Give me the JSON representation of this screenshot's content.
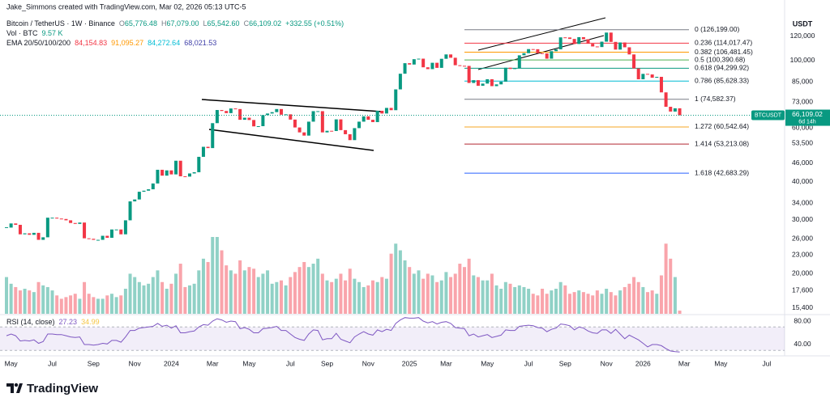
{
  "header": {
    "credit": "Jake_Simmons created with TradingView.com, Mar 02, 2026 05:13 UTC-5"
  },
  "chart_data": {
    "type": "candlestick",
    "legend": {
      "symbol": "Bitcoin / TetherUS · 1W · Binance",
      "ohlc": [
        {
          "k": "O",
          "v": "65,776.48"
        },
        {
          "k": "H",
          "v": "67,079.00"
        },
        {
          "k": "L",
          "v": "65,542.60"
        },
        {
          "k": "C",
          "v": "66,109.02"
        }
      ],
      "change": "+332.55 (+0.51%)"
    },
    "up_color": "#089981",
    "down_color": "#f23645",
    "categories": [
      null,
      "May",
      null,
      null,
      null,
      null,
      null,
      null,
      null,
      null,
      "Jul",
      null,
      null,
      null,
      null,
      null,
      null,
      null,
      null,
      "Sep",
      null,
      null,
      null,
      null,
      null,
      null,
      null,
      null,
      "Nov",
      null,
      null,
      null,
      null,
      null,
      null,
      null,
      "2024",
      null,
      null,
      null,
      null,
      null,
      null,
      null,
      null,
      "Mar",
      null,
      null,
      null,
      null,
      null,
      null,
      null,
      "May",
      null,
      null,
      null,
      null,
      null,
      null,
      null,
      null,
      "Jul",
      null,
      null,
      null,
      null,
      null,
      null,
      null,
      "Sep",
      null,
      null,
      null,
      null,
      null,
      null,
      null,
      null,
      "Nov",
      null,
      null,
      null,
      null,
      null,
      null,
      null,
      null,
      "2025",
      null,
      null,
      null,
      null,
      null,
      null,
      null,
      "Mar",
      null,
      null,
      null,
      null,
      null,
      null,
      null,
      null,
      "May",
      null,
      null,
      null,
      null,
      null,
      null,
      null,
      null,
      "Jul",
      null,
      null,
      null,
      null,
      null,
      null,
      null,
      "Sep",
      null,
      null,
      null,
      null,
      null,
      null,
      null,
      null,
      "Nov",
      null,
      null,
      null,
      null,
      null,
      null,
      null,
      "2026",
      null,
      null,
      null,
      null,
      null,
      null,
      null,
      null,
      "Mar",
      null,
      null,
      null,
      null,
      null,
      null,
      null,
      "May",
      null,
      null,
      null,
      null,
      null,
      null,
      null,
      null,
      null,
      "Jul",
      null
    ],
    "values": [
      28300,
      29200,
      28900,
      26900,
      27100,
      26800,
      27200,
      25800,
      26300,
      30500,
      30500,
      30300,
      30200,
      29900,
      29300,
      29100,
      29400,
      26100,
      26000,
      25800,
      25800,
      26600,
      26200,
      27900,
      27900,
      26900,
      29900,
      34500,
      35000,
      37100,
      37400,
      37800,
      39500,
      43800,
      41900,
      43600,
      42300,
      46900,
      41700,
      41600,
      42600,
      43000,
      48300,
      52100,
      51600,
      62300,
      68800,
      68300,
      67200,
      69600,
      69300,
      63900,
      64900,
      63800,
      60800,
      60900,
      66200,
      67000,
      67700,
      69300,
      66400,
      66600,
      64000,
      60300,
      58100,
      56700,
      63000,
      68200,
      68200,
      58100,
      58800,
      58700,
      64100,
      59100,
      57300,
      54800,
      60000,
      63000,
      65600,
      63900,
      62800,
      68400,
      67000,
      69900,
      68700,
      80400,
      90500,
      98000,
      97000,
      101000,
      101400,
      95000,
      93700,
      98300,
      94600,
      101300,
      104700,
      102100,
      96500,
      96100,
      96000,
      84400,
      86200,
      82600,
      84000,
      86800,
      82400,
      83500,
      85200,
      94700,
      93800,
      94300,
      104000,
      105700,
      109000,
      108900,
      105700,
      105500,
      101400,
      107300,
      108800,
      119100,
      119000,
      117700,
      113300,
      119300,
      117400,
      113500,
      111200,
      110700,
      115300,
      123500,
      115100,
      108600,
      114600,
      110500,
      104700,
      94200,
      86800,
      90400,
      90000,
      87800,
      88400,
      78600,
      70500,
      68000,
      69700,
      66109.02,
      null,
      null,
      null,
      null,
      null,
      null,
      null,
      null,
      null,
      null,
      null,
      null,
      null,
      null,
      null,
      null,
      null,
      null,
      null,
      null
    ],
    "volume": {
      "label": "Vol · BTC",
      "last": "9.57 K",
      "values": [
        110,
        90,
        80,
        70,
        75,
        70,
        65,
        95,
        85,
        80,
        70,
        55,
        45,
        50,
        55,
        60,
        45,
        95,
        60,
        50,
        45,
        45,
        55,
        60,
        50,
        55,
        75,
        120,
        110,
        95,
        85,
        90,
        110,
        130,
        95,
        75,
        90,
        120,
        150,
        80,
        85,
        90,
        130,
        165,
        155,
        230,
        230,
        190,
        145,
        130,
        120,
        160,
        130,
        140,
        135,
        110,
        120,
        130,
        90,
        95,
        100,
        85,
        110,
        125,
        140,
        155,
        140,
        150,
        165,
        120,
        100,
        95,
        105,
        120,
        100,
        135,
        105,
        95,
        80,
        85,
        100,
        95,
        110,
        105,
        180,
        210,
        190,
        160,
        140,
        120,
        130,
        105,
        120,
        115,
        95,
        100,
        125,
        110,
        120,
        150,
        140,
        165,
        115,
        110,
        100,
        100,
        120,
        85,
        75,
        95,
        90,
        80,
        85,
        80,
        75,
        60,
        55,
        75,
        60,
        70,
        75,
        95,
        85,
        60,
        65,
        70,
        65,
        60,
        55,
        70,
        60,
        75,
        65,
        55,
        70,
        80,
        90,
        110,
        95,
        80,
        65,
        70,
        60,
        115,
        210,
        165,
        110,
        9.57,
        null,
        null,
        null,
        null,
        null,
        null,
        null,
        null,
        null,
        null,
        null,
        null,
        null,
        null,
        null,
        null,
        null,
        null,
        null,
        null
      ]
    },
    "ema": {
      "label": "EMA 20/50/100/200",
      "values": [
        {
          "text": "84,154.83",
          "color": "#f23645"
        },
        {
          "text": "91,095.27",
          "color": "#ff9800"
        },
        {
          "text": "84,272.64",
          "color": "#00bcd4"
        },
        {
          "text": "68,021.53",
          "color": "#3f3fa8"
        }
      ]
    },
    "log_scale": true,
    "grid": false,
    "axis_title": "USDT",
    "ylim": [
      14755,
      141500
    ],
    "yticks": [
      {
        "value": 120000,
        "label": "120,000"
      },
      {
        "value": 100000,
        "label": "100,000"
      },
      {
        "value": 85000,
        "label": "85,000"
      },
      {
        "value": 73000,
        "label": "73,000"
      },
      {
        "value": 60000,
        "label": "60,000"
      },
      {
        "value": 53500,
        "label": "53,500"
      },
      {
        "value": 46000,
        "label": "46,000"
      },
      {
        "value": 40000,
        "label": "40,000"
      },
      {
        "value": 34000,
        "label": "34,000"
      },
      {
        "value": 30000,
        "label": "30,000"
      },
      {
        "value": 26000,
        "label": "26,000"
      },
      {
        "value": 23000,
        "label": "23,000"
      },
      {
        "value": 20000,
        "label": "20,000"
      },
      {
        "value": 17600,
        "label": "17,600"
      },
      {
        "value": 15400,
        "label": "15,400"
      }
    ],
    "fib": [
      {
        "label": "0 (126,199.00)",
        "value": 126199,
        "color": "#787b86"
      },
      {
        "label": "0.236 (114,017.47)",
        "value": 114017.47,
        "color": "#f23645"
      },
      {
        "label": "0.382 (106,481.45)",
        "value": 106481.45,
        "color": "#ff9800"
      },
      {
        "label": "0.5 (100,390.68)",
        "value": 100390.68,
        "color": "#4caf50"
      },
      {
        "label": "0.618 (94,299.92)",
        "value": 94299.92,
        "color": "#089981"
      },
      {
        "label": "0.786 (85,628.33)",
        "value": 85628.33,
        "color": "#00bcd4"
      },
      {
        "label": "1 (74,582.37)",
        "value": 74582.37,
        "color": "#787b86"
      },
      {
        "label": "1.272 (60,542.64)",
        "value": 60542.64,
        "color": "#f5a623"
      },
      {
        "label": "1.414 (53,213.08)",
        "value": 53213.08,
        "color": "#b22833"
      },
      {
        "label": "1.618 (42,683.29)",
        "value": 42683.29,
        "color": "#2962ff"
      }
    ],
    "price_tag": {
      "symbol": "BTCUSDT",
      "price": "66,109.02",
      "countdown": "6d 14h"
    },
    "rsi": {
      "label": "RSI (14, close)",
      "value_text": "27.23",
      "ma_text": "34.99",
      "color": "#7e57c2",
      "ylim": [
        24.8,
        89.7
      ],
      "band": [
        30,
        70
      ],
      "yticks": [
        {
          "value": 80,
          "label": "80.00"
        },
        {
          "value": 40,
          "label": "40.00"
        }
      ],
      "values": [
        55,
        58,
        55,
        46,
        47,
        46,
        48,
        42,
        45,
        58,
        58,
        57,
        57,
        55,
        53,
        52,
        53,
        40,
        40,
        39,
        40,
        42,
        41,
        47,
        47,
        44,
        53,
        64,
        64,
        68,
        69,
        70,
        71,
        76,
        71,
        73,
        68,
        72,
        60,
        60,
        62,
        63,
        70,
        74,
        73,
        80,
        84,
        82,
        78,
        80,
        79,
        67,
        69,
        66,
        60,
        60,
        67,
        68,
        69,
        71,
        64,
        64,
        58,
        52,
        49,
        47,
        58,
        65,
        64,
        48,
        50,
        50,
        59,
        49,
        46,
        43,
        53,
        58,
        62,
        58,
        56,
        65,
        62,
        66,
        64,
        76,
        82,
        86,
        85,
        85,
        86,
        80,
        77,
        79,
        75,
        78,
        79,
        76,
        69,
        68,
        67,
        55,
        58,
        53,
        55,
        57,
        52,
        54,
        56,
        65,
        64,
        64,
        71,
        72,
        73,
        72,
        69,
        68,
        62,
        66,
        68,
        75,
        74,
        72,
        65,
        70,
        68,
        63,
        60,
        59,
        65,
        65,
        59,
        66,
        58,
        50,
        56,
        52,
        48,
        42,
        36,
        40,
        40,
        38,
        33,
        29,
        28,
        27.23,
        null,
        null,
        null,
        null,
        null,
        null,
        null,
        null,
        null,
        null,
        null,
        null,
        null,
        null,
        null,
        null,
        null,
        null,
        null,
        null
      ]
    }
  },
  "footer": {
    "brand": "TradingView"
  }
}
